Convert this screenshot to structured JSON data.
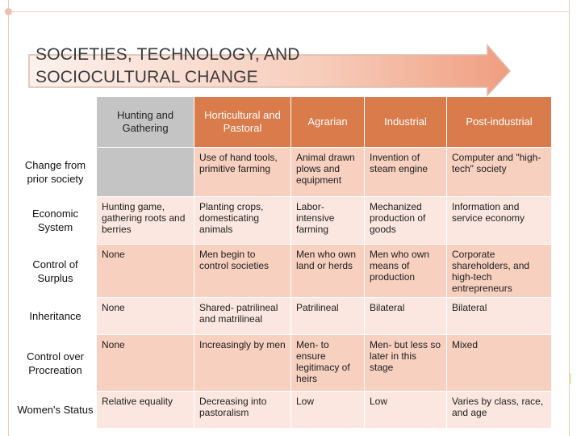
{
  "slide": {
    "title_line1": "SOCIETIES, TECHNOLOGY, AND",
    "title_line2": "SOCIOCULTURAL CHANGE"
  },
  "table": {
    "columns": [
      "Hunting and Gathering",
      "Horticultural and Pastoral",
      "Agrarian",
      "Industrial",
      "Post-industrial"
    ],
    "rows": [
      {
        "label": "Change from prior society",
        "cells": [
          "",
          "Use of hand tools, primitive farming",
          "Animal drawn plows and equipment",
          "Invention of steam engine",
          "Computer and \"high-tech\" society"
        ]
      },
      {
        "label": "Economic System",
        "cells": [
          "Hunting game, gathering roots and berries",
          "Planting crops, domesticating animals",
          "Labor-intensive farming",
          "Mechanized production of goods",
          "Information and service economy"
        ]
      },
      {
        "label": "Control of Surplus",
        "cells": [
          "None",
          "Men begin to control societies",
          "Men who own land or herds",
          "Men who own means of production",
          "Corporate shareholders, and high-tech entrepreneurs"
        ]
      },
      {
        "label": "Inheritance",
        "cells": [
          "None",
          "Shared- patrilineal and matrilineal",
          "Patrilineal",
          "Bilateral",
          "Bilateral"
        ]
      },
      {
        "label": "Control over Procreation",
        "cells": [
          "None",
          "Increasingly by men",
          "Men- to ensure legitimacy of heirs",
          "Men- but less so later in this stage",
          "Mixed"
        ]
      },
      {
        "label": "Women's Status",
        "cells": [
          "Relative equality",
          "Decreasing into pastoralism",
          "Low",
          "Low",
          "Varies by class, race, and age"
        ]
      }
    ]
  },
  "colors": {
    "header": "#d97b4a",
    "row_odd": "#f7d0c0",
    "row_even": "#fbe7df",
    "corner": "#c4c4c4"
  }
}
